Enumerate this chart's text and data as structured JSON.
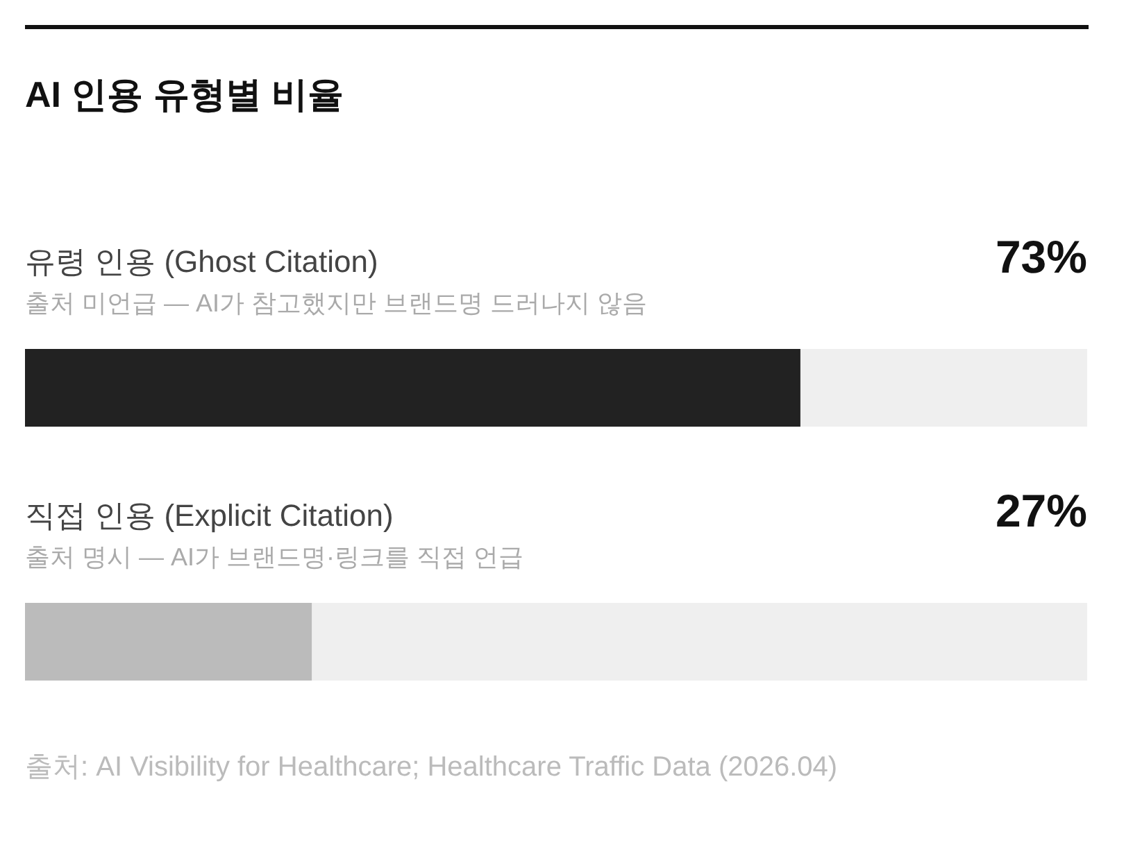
{
  "chart_data": {
    "type": "bar",
    "orientation": "horizontal",
    "title": "AI 인용 유형별 비율",
    "categories": [
      "유령 인용 (Ghost Citation)",
      "직접 인용 (Explicit Citation)"
    ],
    "values": [
      73,
      27
    ],
    "colors": [
      "#222222",
      "#bbbbbb"
    ],
    "value_labels": [
      "73%",
      "27%"
    ],
    "xlim": [
      0,
      100
    ],
    "annotations": [
      "출처 미언급 — AI가 참고했지만 브랜드명 드러나지 않음",
      "출처 명시 — AI가 브랜드명·링크를 직접 언급",
      "출처: AI Visibility for Healthcare; Healthcare Traffic Data (2026.04)"
    ]
  }
}
